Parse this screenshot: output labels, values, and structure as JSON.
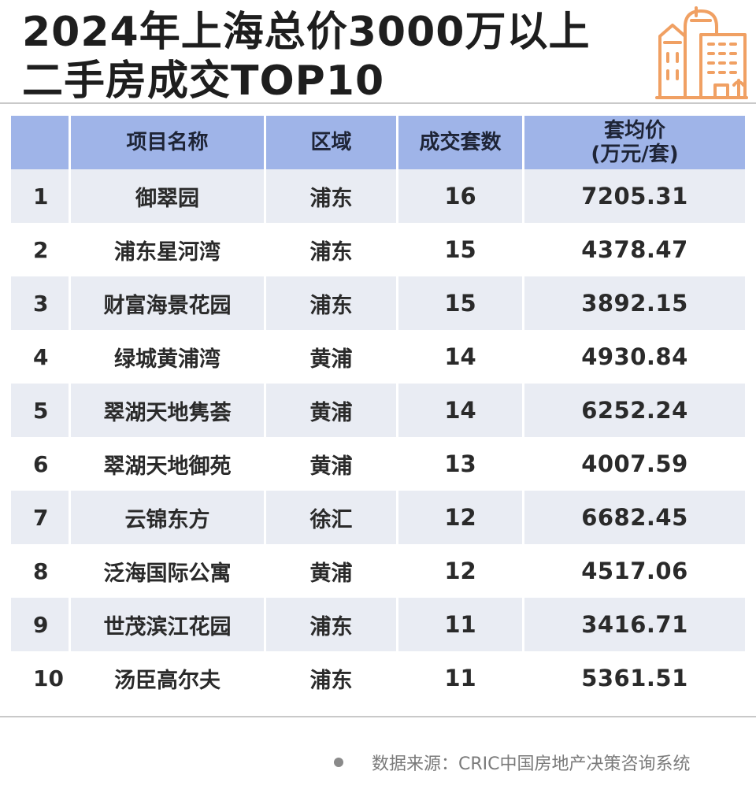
{
  "title": {
    "line1": "2024年上海总价3000万以上",
    "line2": "二手房成交TOP10"
  },
  "logo": {
    "icon": "building-icon",
    "color": "#f0a063"
  },
  "chart_data": {
    "type": "table",
    "columns": [
      "",
      "项目名称",
      "区域",
      "成交套数",
      "套均价\n(万元/套)"
    ],
    "rows": [
      [
        "1",
        "御翠园",
        "浦东",
        "16",
        "7205.31"
      ],
      [
        "2",
        "浦东星河湾",
        "浦东",
        "15",
        "4378.47"
      ],
      [
        "3",
        "财富海景花园",
        "浦东",
        "15",
        "3892.15"
      ],
      [
        "4",
        "绿城黄浦湾",
        "黄浦",
        "14",
        "4930.84"
      ],
      [
        "5",
        "翠湖天地隽荟",
        "黄浦",
        "14",
        "6252.24"
      ],
      [
        "6",
        "翠湖天地御苑",
        "黄浦",
        "13",
        "4007.59"
      ],
      [
        "7",
        "云锦东方",
        "徐汇",
        "12",
        "6682.45"
      ],
      [
        "8",
        "泛海国际公寓",
        "黄浦",
        "12",
        "4517.06"
      ],
      [
        "9",
        "世茂滨江花园",
        "浦东",
        "11",
        "3416.71"
      ],
      [
        "10",
        "汤臣高尔夫",
        "浦东",
        "11",
        "5361.51"
      ]
    ]
  },
  "colors": {
    "header_bg": "#9fb4e8",
    "row_shade": "#e9ecf3",
    "text": "#2a2a2a"
  },
  "footer": {
    "source": "数据来源：CRIC中国房地产决策咨询系统"
  }
}
